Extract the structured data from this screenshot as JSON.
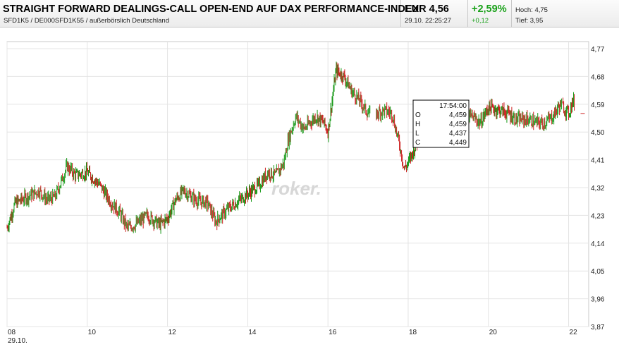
{
  "header": {
    "title": "STRAIGHT FORWARD DEALINGS-CALL OPEN-END AUF DAX PERFORMANCE-INDEX",
    "subtitle": "SFD1K5 / DE000SFD1K55 / außerbörslich Deutschland",
    "price": "EUR 4,56",
    "timestamp": "29.10. 22:25:27",
    "change_pct": "+2,59%",
    "change_abs": "+0,12",
    "high": "Hoch: 4,75",
    "low": "Tief: 3,95"
  },
  "colors": {
    "up": "#1a9a1a",
    "down": "#cc1f1f",
    "positive_text": "#1aa11a",
    "grid": "#e4e4e4"
  },
  "watermark": "roker.",
  "tooltip": {
    "time": "17:54:00",
    "rows": [
      {
        "label": "O",
        "value": "4,459"
      },
      {
        "label": "H",
        "value": "4,459"
      },
      {
        "label": "L",
        "value": "4,437"
      },
      {
        "label": "C",
        "value": "4,449"
      }
    ]
  },
  "chart_data": {
    "type": "candlestick",
    "x_unit": "hour of day 29.10.",
    "xlim": [
      8,
      22.5
    ],
    "ylim": [
      3.87,
      4.77
    ],
    "y_ticks": [
      4.77,
      4.68,
      4.59,
      4.5,
      4.41,
      4.32,
      4.23,
      4.14,
      4.05,
      3.96,
      3.87
    ],
    "y_tick_labels": [
      "4,77",
      "4,68",
      "4,59",
      "4,50",
      "4,41",
      "4,32",
      "4,23",
      "4,14",
      "4,05",
      "3,96",
      "3,87"
    ],
    "x_ticks": [
      8,
      10,
      12,
      14,
      16,
      18,
      20,
      22
    ],
    "x_tick_labels": [
      "08",
      "10",
      "12",
      "14",
      "16",
      "18",
      "20",
      "22"
    ],
    "x_date_label": "29.10.",
    "trend": [
      [
        8.0,
        4.19
      ],
      [
        8.2,
        4.27
      ],
      [
        8.5,
        4.29
      ],
      [
        8.8,
        4.31
      ],
      [
        9.0,
        4.28
      ],
      [
        9.2,
        4.29
      ],
      [
        9.5,
        4.39
      ],
      [
        9.7,
        4.36
      ],
      [
        10.0,
        4.37
      ],
      [
        10.3,
        4.33
      ],
      [
        10.6,
        4.27
      ],
      [
        10.8,
        4.24
      ],
      [
        11.0,
        4.19
      ],
      [
        11.2,
        4.2
      ],
      [
        11.5,
        4.23
      ],
      [
        11.8,
        4.2
      ],
      [
        12.0,
        4.22
      ],
      [
        12.2,
        4.28
      ],
      [
        12.4,
        4.31
      ],
      [
        12.7,
        4.28
      ],
      [
        13.0,
        4.27
      ],
      [
        13.2,
        4.21
      ],
      [
        13.5,
        4.25
      ],
      [
        13.8,
        4.28
      ],
      [
        14.0,
        4.3
      ],
      [
        14.3,
        4.33
      ],
      [
        14.5,
        4.37
      ],
      [
        14.7,
        4.36
      ],
      [
        14.9,
        4.4
      ],
      [
        15.0,
        4.47
      ],
      [
        15.2,
        4.55
      ],
      [
        15.4,
        4.51
      ],
      [
        15.7,
        4.55
      ],
      [
        15.9,
        4.53
      ],
      [
        16.0,
        4.5
      ],
      [
        16.1,
        4.6
      ],
      [
        16.2,
        4.7
      ],
      [
        16.4,
        4.68
      ],
      [
        16.6,
        4.63
      ],
      [
        16.8,
        4.6
      ],
      [
        17.0,
        4.56
      ],
      [
        17.2,
        4.56
      ],
      [
        17.4,
        4.57
      ],
      [
        17.6,
        4.56
      ],
      [
        17.8,
        4.45
      ],
      [
        17.9,
        4.38
      ],
      [
        18.0,
        4.4
      ],
      [
        18.2,
        4.46
      ],
      [
        18.4,
        4.53
      ],
      [
        18.6,
        4.55
      ],
      [
        18.8,
        4.56
      ],
      [
        19.0,
        4.55
      ],
      [
        19.2,
        4.54
      ],
      [
        19.4,
        4.55
      ],
      [
        19.6,
        4.55
      ],
      [
        19.8,
        4.53
      ],
      [
        20.0,
        4.58
      ],
      [
        20.3,
        4.57
      ],
      [
        20.5,
        4.56
      ],
      [
        20.7,
        4.54
      ],
      [
        21.0,
        4.54
      ],
      [
        21.2,
        4.53
      ],
      [
        21.4,
        4.53
      ],
      [
        21.6,
        4.55
      ],
      [
        21.8,
        4.59
      ],
      [
        22.0,
        4.56
      ],
      [
        22.1,
        4.6
      ],
      [
        22.4,
        4.56
      ]
    ]
  }
}
